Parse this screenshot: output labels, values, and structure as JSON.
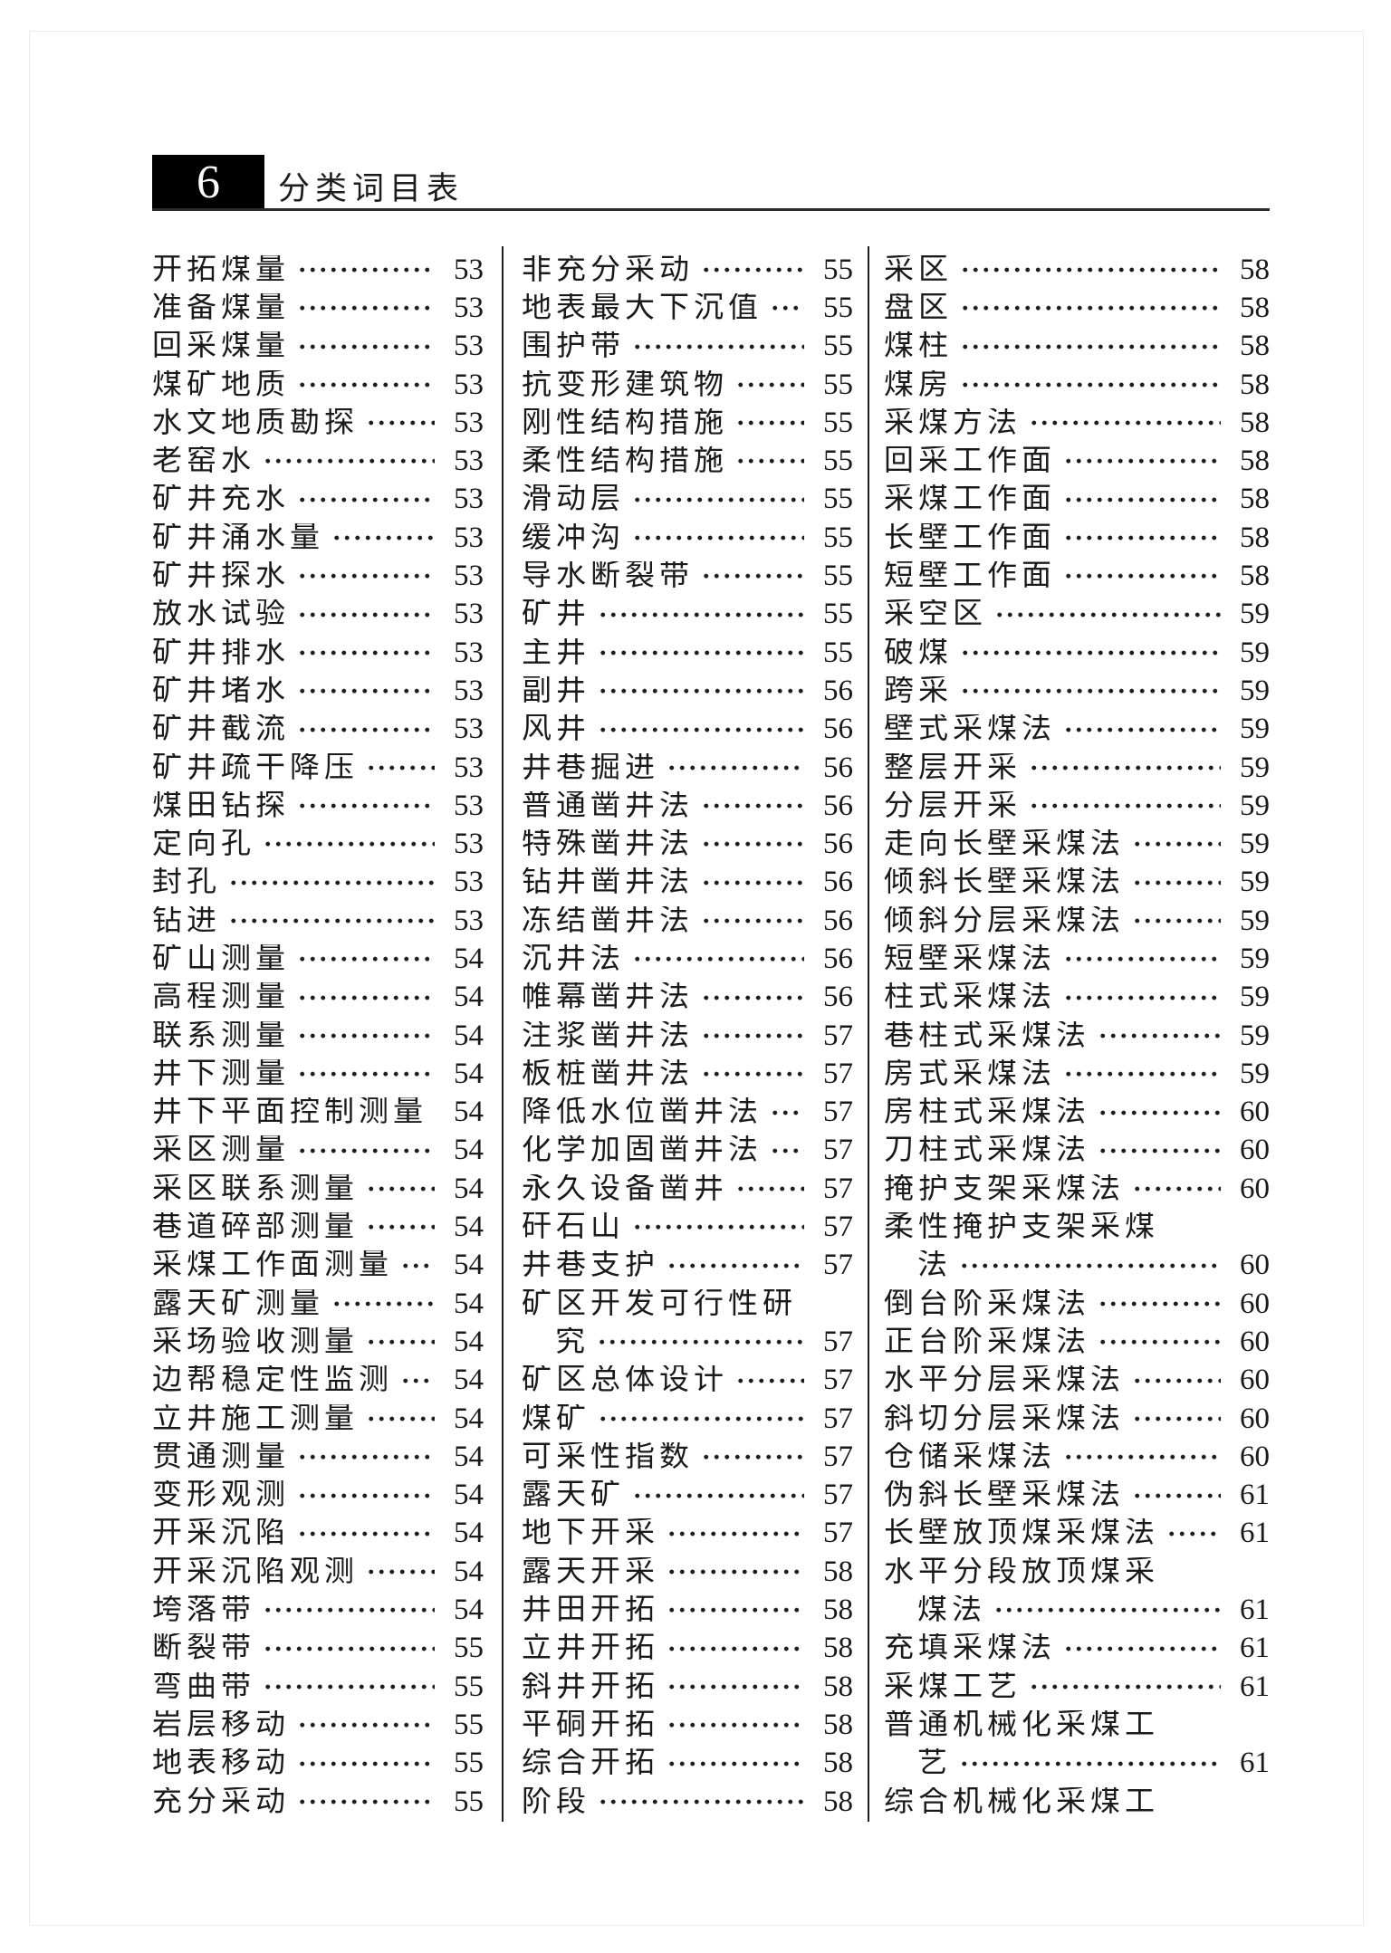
{
  "header": {
    "chapter_number": "6",
    "title": "分类词目表"
  },
  "columns": [
    {
      "rows": [
        {
          "t": "开拓煤量",
          "p": "53"
        },
        {
          "t": "准备煤量",
          "p": "53"
        },
        {
          "t": "回采煤量",
          "p": "53"
        },
        {
          "t": "煤矿地质",
          "p": "53"
        },
        {
          "t": "水文地质勘探",
          "p": "53"
        },
        {
          "t": "老窑水",
          "p": "53"
        },
        {
          "t": "矿井充水",
          "p": "53"
        },
        {
          "t": "矿井涌水量",
          "p": "53"
        },
        {
          "t": "矿井探水",
          "p": "53"
        },
        {
          "t": "放水试验",
          "p": "53"
        },
        {
          "t": "矿井排水",
          "p": "53"
        },
        {
          "t": "矿井堵水",
          "p": "53"
        },
        {
          "t": "矿井截流",
          "p": "53"
        },
        {
          "t": "矿井疏干降压",
          "p": "53"
        },
        {
          "t": "煤田钻探",
          "p": "53"
        },
        {
          "t": "定向孔",
          "p": "53"
        },
        {
          "t": "封孔",
          "p": "53"
        },
        {
          "t": "钻进",
          "p": "53"
        },
        {
          "t": "矿山测量",
          "p": "54"
        },
        {
          "t": "高程测量",
          "p": "54"
        },
        {
          "t": "联系测量",
          "p": "54"
        },
        {
          "t": "井下测量",
          "p": "54"
        },
        {
          "t": "井下平面控制测量",
          "p": "54"
        },
        {
          "t": "采区测量",
          "p": "54"
        },
        {
          "t": "采区联系测量",
          "p": "54"
        },
        {
          "t": "巷道碎部测量",
          "p": "54"
        },
        {
          "t": "采煤工作面测量",
          "p": "54"
        },
        {
          "t": "露天矿测量",
          "p": "54"
        },
        {
          "t": "采场验收测量",
          "p": "54"
        },
        {
          "t": "边帮稳定性监测",
          "p": "54"
        },
        {
          "t": "立井施工测量",
          "p": "54"
        },
        {
          "t": "贯通测量",
          "p": "54"
        },
        {
          "t": "变形观测",
          "p": "54"
        },
        {
          "t": "开采沉陷",
          "p": "54"
        },
        {
          "t": "开采沉陷观测",
          "p": "54"
        },
        {
          "t": "垮落带",
          "p": "54"
        },
        {
          "t": "断裂带",
          "p": "55"
        },
        {
          "t": "弯曲带",
          "p": "55"
        },
        {
          "t": "岩层移动",
          "p": "55"
        },
        {
          "t": "地表移动",
          "p": "55"
        },
        {
          "t": "充分采动",
          "p": "55"
        }
      ]
    },
    {
      "rows": [
        {
          "t": "非充分采动",
          "p": "55"
        },
        {
          "t": "地表最大下沉值",
          "p": "55"
        },
        {
          "t": "围护带",
          "p": "55"
        },
        {
          "t": "抗变形建筑物",
          "p": "55"
        },
        {
          "t": "刚性结构措施",
          "p": "55"
        },
        {
          "t": "柔性结构措施",
          "p": "55"
        },
        {
          "t": "滑动层",
          "p": "55"
        },
        {
          "t": "缓冲沟",
          "p": "55"
        },
        {
          "t": "导水断裂带",
          "p": "55"
        },
        {
          "t": "矿井",
          "p": "55"
        },
        {
          "t": "主井",
          "p": "55"
        },
        {
          "t": "副井",
          "p": "56"
        },
        {
          "t": "风井",
          "p": "56"
        },
        {
          "t": "井巷掘进",
          "p": "56"
        },
        {
          "t": "普通凿井法",
          "p": "56"
        },
        {
          "t": "特殊凿井法",
          "p": "56"
        },
        {
          "t": "钻井凿井法",
          "p": "56"
        },
        {
          "t": "冻结凿井法",
          "p": "56"
        },
        {
          "t": "沉井法",
          "p": "56"
        },
        {
          "t": "帷幕凿井法",
          "p": "56"
        },
        {
          "t": "注浆凿井法",
          "p": "57"
        },
        {
          "t": "板桩凿井法",
          "p": "57"
        },
        {
          "t": "降低水位凿井法",
          "p": "57"
        },
        {
          "t": "化学加固凿井法",
          "p": "57"
        },
        {
          "t": "永久设备凿井",
          "p": "57"
        },
        {
          "t": "矸石山",
          "p": "57"
        },
        {
          "t": "井巷支护",
          "p": "57"
        },
        {
          "t": "矿区开发可行性研",
          "p": ""
        },
        {
          "t": "究",
          "p": "57",
          "i": 1
        },
        {
          "t": "矿区总体设计",
          "p": "57"
        },
        {
          "t": "煤矿",
          "p": "57"
        },
        {
          "t": "可采性指数",
          "p": "57"
        },
        {
          "t": "露天矿",
          "p": "57"
        },
        {
          "t": "地下开采",
          "p": "57"
        },
        {
          "t": "露天开采",
          "p": "58"
        },
        {
          "t": "井田开拓",
          "p": "58"
        },
        {
          "t": "立井开拓",
          "p": "58"
        },
        {
          "t": "斜井开拓",
          "p": "58"
        },
        {
          "t": "平硐开拓",
          "p": "58"
        },
        {
          "t": "综合开拓",
          "p": "58"
        },
        {
          "t": "阶段",
          "p": "58"
        }
      ]
    },
    {
      "rows": [
        {
          "t": "采区",
          "p": "58"
        },
        {
          "t": "盘区",
          "p": "58"
        },
        {
          "t": "煤柱",
          "p": "58"
        },
        {
          "t": "煤房",
          "p": "58"
        },
        {
          "t": "采煤方法",
          "p": "58"
        },
        {
          "t": "回采工作面",
          "p": "58"
        },
        {
          "t": "采煤工作面",
          "p": "58"
        },
        {
          "t": "长壁工作面",
          "p": "58"
        },
        {
          "t": "短壁工作面",
          "p": "58"
        },
        {
          "t": "采空区",
          "p": "59"
        },
        {
          "t": "破煤",
          "p": "59"
        },
        {
          "t": "跨采",
          "p": "59"
        },
        {
          "t": "壁式采煤法",
          "p": "59"
        },
        {
          "t": "整层开采",
          "p": "59"
        },
        {
          "t": "分层开采",
          "p": "59"
        },
        {
          "t": "走向长壁采煤法",
          "p": "59"
        },
        {
          "t": "倾斜长壁采煤法",
          "p": "59"
        },
        {
          "t": "倾斜分层采煤法",
          "p": "59"
        },
        {
          "t": "短壁采煤法",
          "p": "59"
        },
        {
          "t": "柱式采煤法",
          "p": "59"
        },
        {
          "t": "巷柱式采煤法",
          "p": "59"
        },
        {
          "t": "房式采煤法",
          "p": "59"
        },
        {
          "t": "房柱式采煤法",
          "p": "60"
        },
        {
          "t": "刀柱式采煤法",
          "p": "60"
        },
        {
          "t": "掩护支架采煤法",
          "p": "60"
        },
        {
          "t": "柔性掩护支架采煤",
          "p": ""
        },
        {
          "t": "法",
          "p": "60",
          "i": 1
        },
        {
          "t": "倒台阶采煤法",
          "p": "60"
        },
        {
          "t": "正台阶采煤法",
          "p": "60"
        },
        {
          "t": "水平分层采煤法",
          "p": "60"
        },
        {
          "t": "斜切分层采煤法",
          "p": "60"
        },
        {
          "t": "仓储采煤法",
          "p": "60"
        },
        {
          "t": "伪斜长壁采煤法",
          "p": "61"
        },
        {
          "t": "长壁放顶煤采煤法",
          "p": "61"
        },
        {
          "t": "水平分段放顶煤采",
          "p": ""
        },
        {
          "t": "煤法",
          "p": "61",
          "i": 1
        },
        {
          "t": "充填采煤法",
          "p": "61"
        },
        {
          "t": "采煤工艺",
          "p": "61"
        },
        {
          "t": "普通机械化采煤工",
          "p": ""
        },
        {
          "t": "艺",
          "p": "61",
          "i": 1
        },
        {
          "t": "综合机械化采煤工",
          "p": ""
        }
      ]
    }
  ]
}
